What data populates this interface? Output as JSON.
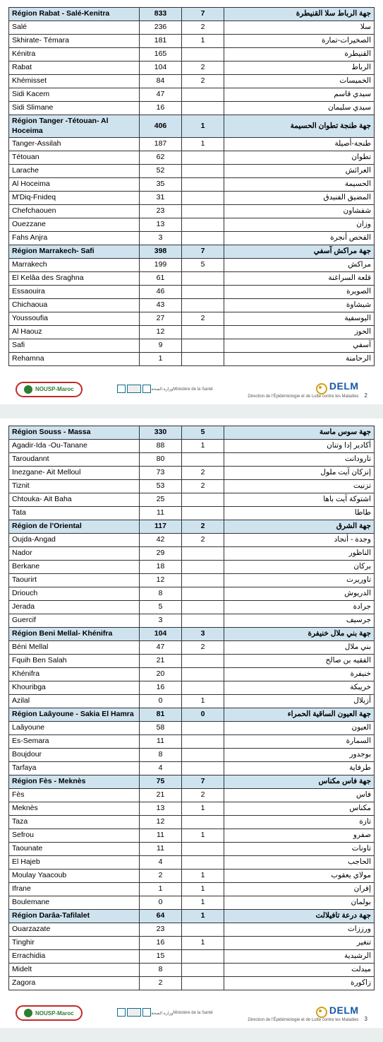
{
  "pages": [
    {
      "page_number": 2,
      "sections": [
        {
          "fr": "Région Rabat - Salé-Kenitra",
          "ar": "جهة الرباط سلا القنيطرة",
          "v1": 833,
          "v2": 7,
          "rows": [
            {
              "fr": "Salé",
              "ar": "سلا",
              "v1": 236,
              "v2": 2
            },
            {
              "fr": "Skhirate- Témara",
              "ar": "الصخيرات-تمارة",
              "v1": 181,
              "v2": 1
            },
            {
              "fr": "Kénitra",
              "ar": "القنيطرة",
              "v1": 165,
              "v2": ""
            },
            {
              "fr": "Rabat",
              "ar": "الرباط",
              "v1": 104,
              "v2": 2
            },
            {
              "fr": "Khémisset",
              "ar": "الخميسات",
              "v1": 84,
              "v2": 2
            },
            {
              "fr": "Sidi Kacem",
              "ar": "سيدي قاسم",
              "v1": 47,
              "v2": ""
            },
            {
              "fr": "Sidi Slimane",
              "ar": "سيدي سليمان",
              "v1": 16,
              "v2": ""
            }
          ]
        },
        {
          "fr": "Région Tanger -Tétouan- Al Hoceima",
          "ar": "جهة طنجة تطوان الحسيمة",
          "v1": 406,
          "v2": 1,
          "rows": [
            {
              "fr": "Tanger-Assilah",
              "ar": "طنجة-أصيلة",
              "v1": 187,
              "v2": 1
            },
            {
              "fr": "Tétouan",
              "ar": "تطوان",
              "v1": 62,
              "v2": ""
            },
            {
              "fr": "Larache",
              "ar": "العرائش",
              "v1": 52,
              "v2": ""
            },
            {
              "fr": "Al Hoceima",
              "ar": "الحسيمة",
              "v1": 35,
              "v2": ""
            },
            {
              "fr": "M'Diq-Fnideq",
              "ar": "المضيق الفنيدق",
              "v1": 31,
              "v2": ""
            },
            {
              "fr": "Chefchaouen",
              "ar": "شفشاون",
              "v1": 23,
              "v2": ""
            },
            {
              "fr": "Ouezzane",
              "ar": "وزان",
              "v1": 13,
              "v2": ""
            },
            {
              "fr": "Fahs Anjra",
              "ar": "الفحص أنجرة",
              "v1": 3,
              "v2": ""
            }
          ]
        },
        {
          "fr": "Région Marrakech- Safi",
          "ar": "جهة مراكش آسفي",
          "v1": 398,
          "v2": 7,
          "rows": [
            {
              "fr": "Marrakech",
              "ar": "مراكش",
              "v1": 199,
              "v2": 5
            },
            {
              "fr": "El Kelâa des  Sraghna",
              "ar": "قلعة السراغنة",
              "v1": 61,
              "v2": ""
            },
            {
              "fr": "Essaouira",
              "ar": "الصويرة",
              "v1": 46,
              "v2": ""
            },
            {
              "fr": "Chichaoua",
              "ar": "شيشاوة",
              "v1": 43,
              "v2": ""
            },
            {
              "fr": "Youssoufia",
              "ar": "اليوسفية",
              "v1": 27,
              "v2": 2
            },
            {
              "fr": "Al  Haouz",
              "ar": "الحوز",
              "v1": 12,
              "v2": ""
            },
            {
              "fr": "Safi",
              "ar": "آسفي",
              "v1": 9,
              "v2": ""
            },
            {
              "fr": "Rehamna",
              "ar": "الرحامنة",
              "v1": 1,
              "v2": ""
            }
          ]
        }
      ]
    },
    {
      "page_number": 3,
      "sections": [
        {
          "fr": "Région Souss - Massa",
          "ar": "جهة سوس ماسة",
          "v1": 330,
          "v2": 5,
          "rows": [
            {
              "fr": "Agadir-Ida -Ou-Tanane",
              "ar": "أكادير إدا وتنان",
              "v1": 88,
              "v2": 1
            },
            {
              "fr": "Taroudannt",
              "ar": "تارودانت",
              "v1": 80,
              "v2": ""
            },
            {
              "fr": "Inezgane- Ait Melloul",
              "ar": "إنزكان آيت ملول",
              "v1": 73,
              "v2": 2
            },
            {
              "fr": "Tiznit",
              "ar": "تزنيت",
              "v1": 53,
              "v2": 2
            },
            {
              "fr": "Chtouka- Ait Baha",
              "ar": "اشتوكة آيت باها",
              "v1": 25,
              "v2": ""
            },
            {
              "fr": "Tata",
              "ar": "طاطا",
              "v1": 11,
              "v2": ""
            }
          ]
        },
        {
          "fr": "Région de l'Oriental",
          "ar": "جهة الشرق",
          "v1": 117,
          "v2": 2,
          "rows": [
            {
              "fr": "Oujda-Angad",
              "ar": "وجدة - أنجاد",
              "v1": 42,
              "v2": 2
            },
            {
              "fr": "Nador",
              "ar": "الناظور",
              "v1": 29,
              "v2": ""
            },
            {
              "fr": "Berkane",
              "ar": "بركان",
              "v1": 18,
              "v2": ""
            },
            {
              "fr": "Taourirt",
              "ar": "تاوريرت",
              "v1": 12,
              "v2": ""
            },
            {
              "fr": "Driouch",
              "ar": "الدريوش",
              "v1": 8,
              "v2": ""
            },
            {
              "fr": "Jerada",
              "ar": "جرادة",
              "v1": 5,
              "v2": ""
            },
            {
              "fr": "Guercif",
              "ar": "جرسيف",
              "v1": 3,
              "v2": ""
            }
          ]
        },
        {
          "fr": "Région Beni Mellal- Khénifra",
          "ar": "جهة بني ملال خنيفرة",
          "v1": 104,
          "v2": 3,
          "rows": [
            {
              "fr": "Béni Mellal",
              "ar": "بني ملال",
              "v1": 47,
              "v2": 2
            },
            {
              "fr": "Fquih Ben Salah",
              "ar": "الفقيه بن صالح",
              "v1": 21,
              "v2": ""
            },
            {
              "fr": "Khénifra",
              "ar": "خنيفرة",
              "v1": 20,
              "v2": ""
            },
            {
              "fr": "Khouribga",
              "ar": "خريبكة",
              "v1": 16,
              "v2": ""
            },
            {
              "fr": "Azilal",
              "ar": "أزيلال",
              "v1": 0,
              "v2": 1
            }
          ]
        },
        {
          "fr": "Région Laâyoune - Sakia El Hamra",
          "ar": "جهة العيون الساقية الحمراء",
          "v1": 81,
          "v2": 0,
          "rows": [
            {
              "fr": "Laâyoune",
              "ar": "العيون",
              "v1": 58,
              "v2": ""
            },
            {
              "fr": "Es-Semara",
              "ar": "السمارة",
              "v1": 11,
              "v2": ""
            },
            {
              "fr": "Boujdour",
              "ar": "بوجدور",
              "v1": 8,
              "v2": ""
            },
            {
              "fr": "Tarfaya",
              "ar": "طرفاية",
              "v1": 4,
              "v2": ""
            }
          ]
        },
        {
          "fr": "Région Fès - Meknès",
          "ar": "جهة فاس مكناس",
          "v1": 75,
          "v2": 7,
          "rows": [
            {
              "fr": "Fès",
              "ar": "فاس",
              "v1": 21,
              "v2": 2
            },
            {
              "fr": "Meknès",
              "ar": "مكناس",
              "v1": 13,
              "v2": 1
            },
            {
              "fr": "Taza",
              "ar": "تازة",
              "v1": 12,
              "v2": ""
            },
            {
              "fr": "Sefrou",
              "ar": "صفرو",
              "v1": 11,
              "v2": 1
            },
            {
              "fr": "Taounate",
              "ar": "تاونات",
              "v1": 11,
              "v2": ""
            },
            {
              "fr": "El  Hajeb",
              "ar": "الحاجب",
              "v1": 4,
              "v2": ""
            },
            {
              "fr": "Moulay Yaacoub",
              "ar": "مولاي يعقوب",
              "v1": 2,
              "v2": 1
            },
            {
              "fr": "Ifrane",
              "ar": "إفران",
              "v1": 1,
              "v2": 1
            },
            {
              "fr": "Boulemane",
              "ar": "بولمان",
              "v1": 0,
              "v2": 1
            }
          ]
        },
        {
          "fr": "Région Darâa-Tafilalet",
          "ar": "جهة درعة تافيلالت",
          "v1": 64,
          "v2": 1,
          "rows": [
            {
              "fr": "Ouarzazate",
              "ar": "ورززات",
              "v1": 23,
              "v2": ""
            },
            {
              "fr": "Tinghir",
              "ar": "تنغير",
              "v1": 16,
              "v2": 1
            },
            {
              "fr": "Errachidia",
              "ar": "الرشيدية",
              "v1": 15,
              "v2": ""
            },
            {
              "fr": "Midelt",
              "ar": "ميدلت",
              "v1": 8,
              "v2": ""
            },
            {
              "fr": "Zagora",
              "ar": "زاكورة",
              "v1": 2,
              "v2": ""
            }
          ]
        }
      ]
    }
  ],
  "logos": {
    "nousp": "NOUSP-Maroc",
    "ministry_ar": "وزارة الصحة",
    "ministry_sub": "Ministère de la Santé",
    "delm": "DELM",
    "delm_sub": "Direction de l'Épidémiologie et de Lutte contre les Maladies"
  }
}
